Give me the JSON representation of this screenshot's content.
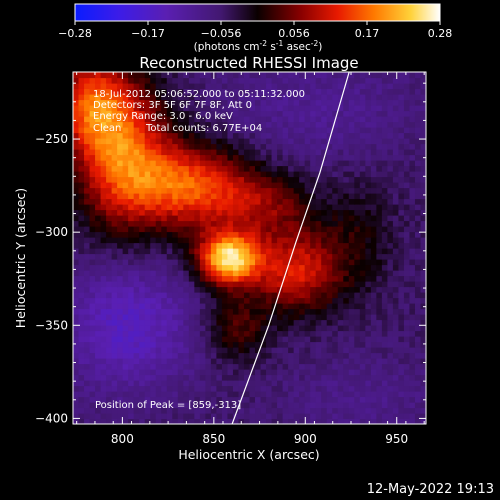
{
  "chart_data": {
    "type": "heatmap",
    "title": "Reconstructed RHESSI Image",
    "xlabel": "Heliocentric X (arcsec)",
    "ylabel": "Heliocentric Y (arcsec)",
    "xlim": [
      773,
      966
    ],
    "ylim": [
      -403,
      -214
    ],
    "xticks": [
      800,
      850,
      900,
      950
    ],
    "yticks": [
      -250,
      -300,
      -350,
      -400
    ],
    "colorbar": {
      "min": -0.28,
      "max": 0.28,
      "ticks": [
        "-0.28",
        "-0.17",
        "-0.056",
        "0.056",
        "0.17",
        "0.28"
      ],
      "unit_prefix": "(photons cm",
      "unit_exp1": "-2",
      "unit_mid1": " s",
      "unit_exp2": "-1",
      "unit_mid2": " asec",
      "unit_exp3": "-2",
      "unit_suffix": ")"
    },
    "annotations": [
      "18-Jul-2012 05:06:52.000 to 05:11:32.000",
      "Detectors: 3F 5F 6F 7F 8F, Att 0",
      "Energy Range: 3.0 - 6.0 keV",
      "Clean",
      "Total counts: 6.77E+04"
    ],
    "peak_label": "Position of Peak = [859,-313]",
    "peak": [
      859,
      -313
    ],
    "limb_curve": [
      [
        860,
        -403
      ],
      [
        880,
        -350
      ],
      [
        895,
        -305
      ],
      [
        908,
        -268
      ],
      [
        924,
        -214
      ]
    ],
    "intensity_sources": [
      {
        "x": 858,
        "y": -314,
        "amp": 0.3,
        "sx": 12,
        "sy": 10
      },
      {
        "x": 895,
        "y": -320,
        "amp": 0.17,
        "sx": 18,
        "sy": 16
      },
      {
        "x": 838,
        "y": -275,
        "amp": 0.2,
        "sx": 22,
        "sy": 16
      },
      {
        "x": 800,
        "y": -258,
        "amp": 0.21,
        "sx": 18,
        "sy": 28
      },
      {
        "x": 782,
        "y": -230,
        "amp": 0.16,
        "sx": 14,
        "sy": 18
      },
      {
        "x": 878,
        "y": -284,
        "amp": 0.1,
        "sx": 18,
        "sy": 12
      },
      {
        "x": 862,
        "y": -352,
        "amp": 0.09,
        "sx": 12,
        "sy": 12
      },
      {
        "x": 930,
        "y": -300,
        "amp": 0.05,
        "sx": 14,
        "sy": 22
      },
      {
        "x": 803,
        "y": -350,
        "amp": -0.1,
        "sx": 26,
        "sy": 24
      },
      {
        "x": 905,
        "y": -235,
        "amp": -0.04,
        "sx": 40,
        "sy": 20
      },
      {
        "x": 930,
        "y": -390,
        "amp": -0.03,
        "sx": 30,
        "sy": 16
      }
    ],
    "background_level": -0.055
  },
  "timestamp": "12-May-2022 19:13"
}
